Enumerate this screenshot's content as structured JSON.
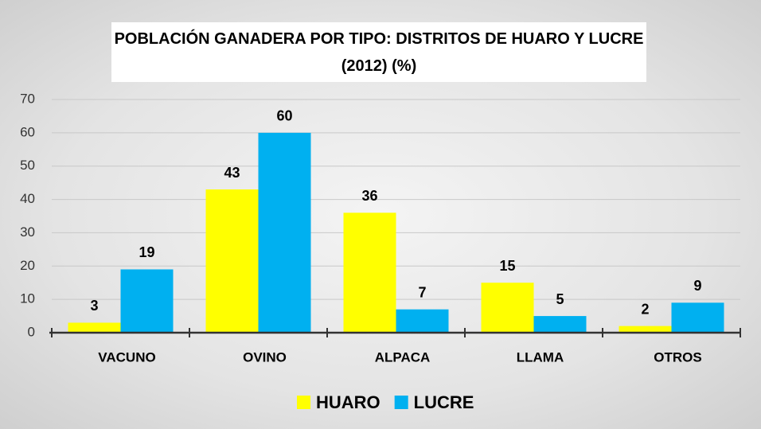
{
  "chart_data": {
    "type": "bar",
    "title": "POBLACIÓN GANADERA POR TIPO: DISTRITOS DE HUARO Y LUCRE (2012) (%)",
    "categories": [
      "VACUNO",
      "OVINO",
      "ALPACA",
      "LLAMA",
      "OTROS"
    ],
    "series": [
      {
        "name": "HUARO",
        "color": "#ffff00",
        "values": [
          3,
          43,
          36,
          15,
          2
        ]
      },
      {
        "name": "LUCRE",
        "color": "#00b0f0",
        "values": [
          19,
          60,
          7,
          5,
          9
        ]
      }
    ],
    "ylim": [
      0,
      70
    ],
    "yticks": [
      0,
      10,
      20,
      30,
      40,
      50,
      60,
      70
    ],
    "grid": true,
    "legend": "bottom"
  }
}
